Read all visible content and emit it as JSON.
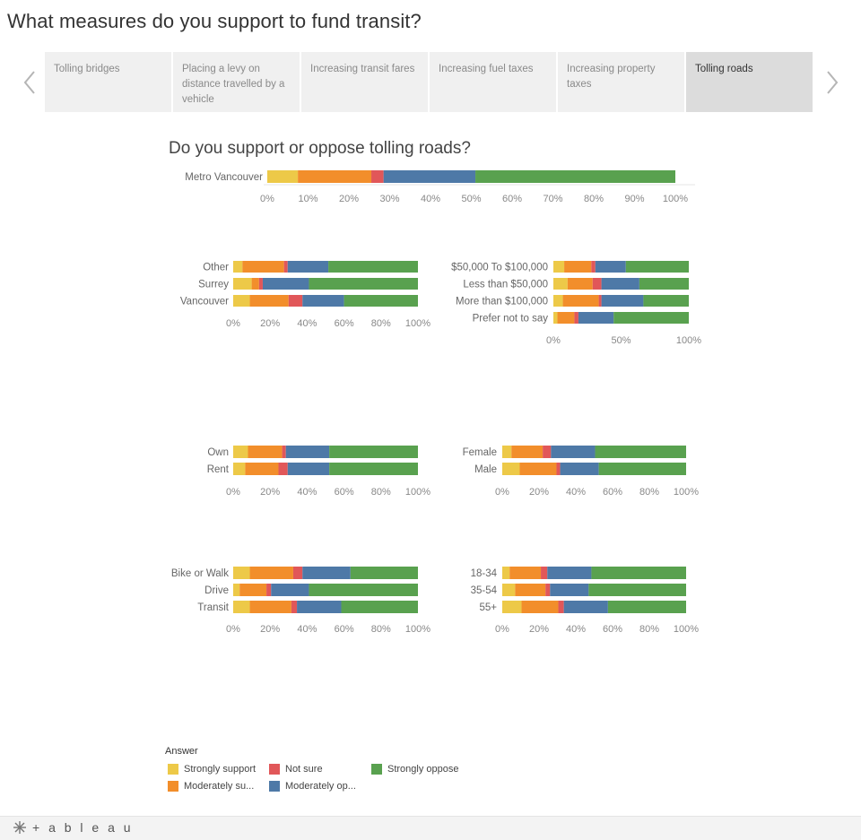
{
  "page": {
    "title": "What measures do you support to fund transit?"
  },
  "tabs": [
    {
      "label": "Tolling bridges",
      "active": false
    },
    {
      "label": "Placing a levy on distance travelled by a vehicle",
      "active": false
    },
    {
      "label": "Increasing transit fares",
      "active": false
    },
    {
      "label": "Increasing fuel taxes",
      "active": false
    },
    {
      "label": "Increasing property taxes",
      "active": false
    },
    {
      "label": "Tolling roads",
      "active": true
    }
  ],
  "subtitle": "Do you support or oppose tolling roads?",
  "colors": {
    "Strongly support": "#edc948",
    "Moderately support": "#f28e2b",
    "Not sure": "#e15759",
    "Moderately oppose": "#4e79a7",
    "Strongly oppose": "#59a14f"
  },
  "legend": {
    "title": "Answer",
    "items": [
      {
        "label": "Strongly support",
        "key": "Strongly support"
      },
      {
        "label": "Not sure",
        "key": "Not sure"
      },
      {
        "label": "Strongly oppose",
        "key": "Strongly oppose"
      },
      {
        "label": "Moderately su...",
        "key": "Moderately support"
      },
      {
        "label": "Moderately op...",
        "key": "Moderately oppose"
      }
    ]
  },
  "footer": {
    "logo_text": "+ a b l e a u"
  },
  "chart_data": [
    {
      "type": "bar",
      "stacked": true,
      "orientation": "horizontal",
      "panel": "overall",
      "series_order": [
        "Strongly support",
        "Moderately support",
        "Not sure",
        "Moderately oppose",
        "Strongly oppose"
      ],
      "categories": [
        "Metro Vancouver"
      ],
      "values": [
        [
          7.5,
          18,
          3,
          22.5,
          49
        ]
      ],
      "xlim": [
        0,
        100
      ],
      "ticks": [
        "0%",
        "10%",
        "20%",
        "30%",
        "40%",
        "50%",
        "60%",
        "70%",
        "80%",
        "90%",
        "100%"
      ],
      "tick_values": [
        0,
        10,
        20,
        30,
        40,
        50,
        60,
        70,
        80,
        90,
        100
      ]
    },
    {
      "type": "bar",
      "stacked": true,
      "orientation": "horizontal",
      "panel": "region",
      "categories": [
        "Other",
        "Surrey",
        "Vancouver"
      ],
      "values": [
        [
          5,
          22.5,
          2,
          22,
          48.5
        ],
        [
          10,
          4,
          2,
          25,
          59
        ],
        [
          9,
          21,
          7.5,
          22.5,
          40
        ]
      ],
      "xlim": [
        0,
        100
      ],
      "ticks": [
        "0%",
        "20%",
        "40%",
        "60%",
        "80%",
        "100%"
      ],
      "tick_values": [
        0,
        20,
        40,
        60,
        80,
        100
      ]
    },
    {
      "type": "bar",
      "stacked": true,
      "orientation": "horizontal",
      "panel": "income",
      "categories": [
        "$50,000 To $100,000",
        "Less than $50,000",
        "More than $100,000",
        "Prefer not to say"
      ],
      "values": [
        [
          8,
          20,
          3,
          22.5,
          46.5
        ],
        [
          10.5,
          18.5,
          6.5,
          28,
          36.5
        ],
        [
          7,
          26.5,
          2,
          31,
          33.5
        ],
        [
          3,
          12.5,
          3,
          26,
          55.5
        ]
      ],
      "xlim": [
        0,
        100
      ],
      "ticks": [
        "0%",
        "50%",
        "100%"
      ],
      "tick_values": [
        0,
        50,
        100
      ]
    },
    {
      "type": "bar",
      "stacked": true,
      "orientation": "horizontal",
      "panel": "housing",
      "categories": [
        "Own",
        "Rent"
      ],
      "values": [
        [
          8,
          18.5,
          2,
          23.5,
          48
        ],
        [
          6.5,
          18,
          5,
          22.5,
          48
        ]
      ],
      "xlim": [
        0,
        100
      ],
      "ticks": [
        "0%",
        "20%",
        "40%",
        "60%",
        "80%",
        "100%"
      ],
      "tick_values": [
        0,
        20,
        40,
        60,
        80,
        100
      ]
    },
    {
      "type": "bar",
      "stacked": true,
      "orientation": "horizontal",
      "panel": "gender",
      "categories": [
        "Female",
        "Male"
      ],
      "values": [
        [
          5,
          17,
          4.5,
          24,
          49.5
        ],
        [
          9.5,
          20,
          2,
          21,
          47.5
        ]
      ],
      "xlim": [
        0,
        100
      ],
      "ticks": [
        "0%",
        "20%",
        "40%",
        "60%",
        "80%",
        "100%"
      ],
      "tick_values": [
        0,
        20,
        40,
        60,
        80,
        100
      ]
    },
    {
      "type": "bar",
      "stacked": true,
      "orientation": "horizontal",
      "panel": "commute",
      "categories": [
        "Bike or Walk",
        "Drive",
        "Transit"
      ],
      "values": [
        [
          9,
          23.5,
          5,
          26,
          36.5
        ],
        [
          3.5,
          14.5,
          2.5,
          20.5,
          59
        ],
        [
          9,
          22.5,
          3,
          24,
          41.5
        ]
      ],
      "xlim": [
        0,
        100
      ],
      "ticks": [
        "0%",
        "20%",
        "40%",
        "60%",
        "80%",
        "100%"
      ],
      "tick_values": [
        0,
        20,
        40,
        60,
        80,
        100
      ]
    },
    {
      "type": "bar",
      "stacked": true,
      "orientation": "horizontal",
      "panel": "age",
      "categories": [
        "18-34",
        "35-54",
        "55+"
      ],
      "values": [
        [
          4,
          17,
          3.5,
          24,
          51.5
        ],
        [
          7,
          16.5,
          2.5,
          21,
          53
        ],
        [
          10.5,
          20,
          3,
          24,
          42.5
        ]
      ],
      "xlim": [
        0,
        100
      ],
      "ticks": [
        "0%",
        "20%",
        "40%",
        "60%",
        "80%",
        "100%"
      ],
      "tick_values": [
        0,
        20,
        40,
        60,
        80,
        100
      ]
    }
  ]
}
